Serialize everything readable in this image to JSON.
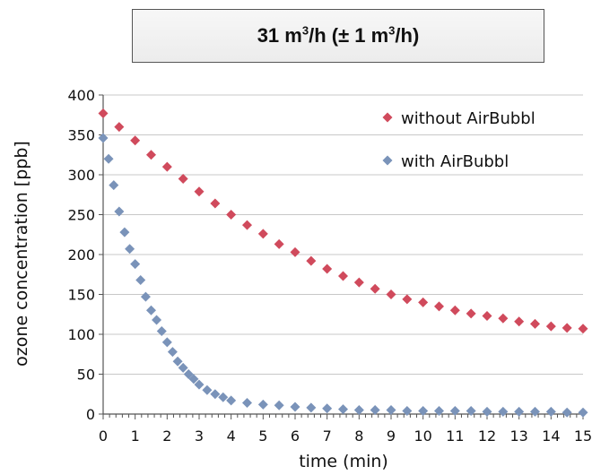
{
  "chart_data": {
    "type": "scatter",
    "title_parts": {
      "pre": "31 m",
      "sup1": "3",
      "mid": "/h (± 1 m",
      "sup2": "3",
      "post": "/h)"
    },
    "title": "31 m3/h (± 1 m3/h)",
    "xlabel": "time (min)",
    "ylabel": "ozone concentration [ppb]",
    "xlim": [
      0,
      15
    ],
    "ylim": [
      0,
      400
    ],
    "xticks": [
      "0",
      "1",
      "2",
      "3",
      "4",
      "5",
      "6",
      "7",
      "8",
      "9",
      "10",
      "11",
      "12",
      "13",
      "14",
      "15"
    ],
    "yticks": [
      "0",
      "50",
      "100",
      "150",
      "200",
      "250",
      "300",
      "350",
      "400"
    ],
    "grid": "horizontal",
    "legend_position": "top-right",
    "series": [
      {
        "name": "without AirBubbl",
        "color": "#d04a5c",
        "marker": "diamond",
        "x": [
          0,
          0.5,
          1,
          1.5,
          2,
          2.5,
          3,
          3.5,
          4,
          4.5,
          5,
          5.5,
          6,
          6.5,
          7,
          7.5,
          8,
          8.5,
          9,
          9.5,
          10,
          10.5,
          11,
          11.5,
          12,
          12.5,
          13,
          13.5,
          14,
          14.5,
          15
        ],
        "y": [
          377,
          360,
          343,
          325,
          310,
          295,
          279,
          264,
          250,
          237,
          226,
          213,
          203,
          192,
          182,
          173,
          165,
          157,
          150,
          144,
          140,
          135,
          130,
          126,
          123,
          120,
          116,
          113,
          110,
          108,
          107
        ]
      },
      {
        "name": "with AirBubbl",
        "color": "#7a93b9",
        "marker": "diamond",
        "x": [
          0,
          0.17,
          0.33,
          0.5,
          0.67,
          0.83,
          1,
          1.17,
          1.33,
          1.5,
          1.67,
          1.83,
          2,
          2.17,
          2.33,
          2.5,
          2.67,
          2.83,
          3,
          3.25,
          3.5,
          3.75,
          4,
          4.5,
          5,
          5.5,
          6,
          6.5,
          7,
          7.5,
          8,
          8.5,
          9,
          9.5,
          10,
          10.5,
          11,
          11.5,
          12,
          12.5,
          13,
          13.5,
          14,
          14.5,
          15
        ],
        "y": [
          346,
          320,
          287,
          254,
          228,
          207,
          188,
          168,
          147,
          130,
          118,
          104,
          90,
          78,
          66,
          58,
          50,
          44,
          37,
          30,
          25,
          21,
          17,
          14,
          12,
          11,
          9,
          8,
          7,
          6,
          5,
          5,
          5,
          4,
          4,
          4,
          4,
          4,
          3,
          3,
          3,
          3,
          3,
          2,
          2
        ]
      }
    ]
  }
}
